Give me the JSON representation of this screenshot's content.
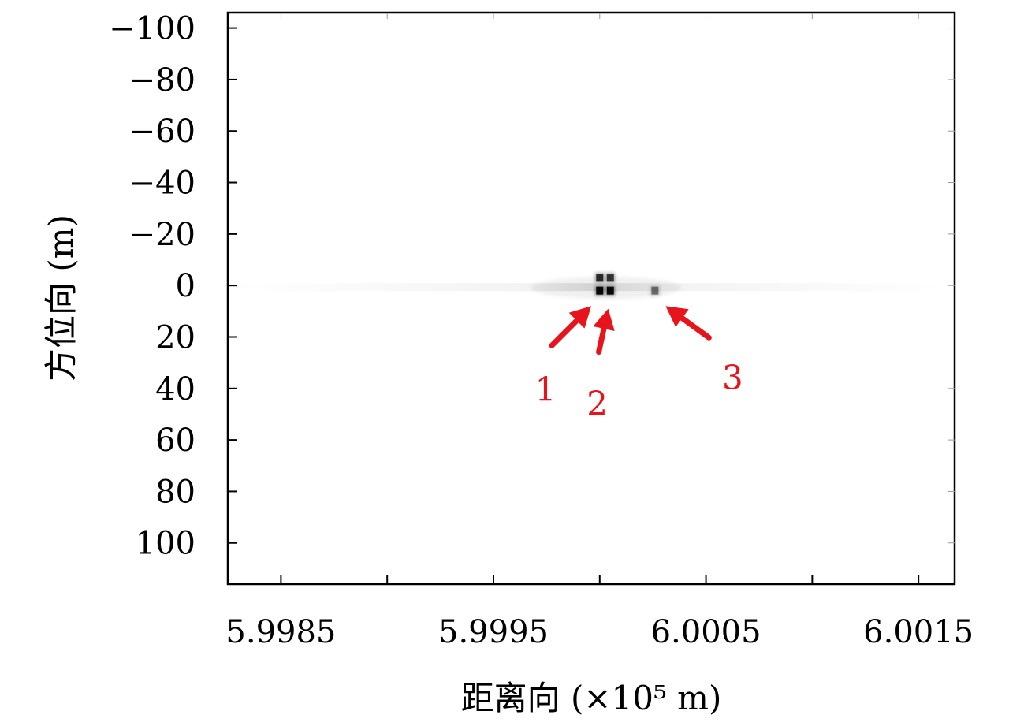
{
  "chart_data": {
    "type": "heatmap",
    "xlabel": "距离向 (×10⁵ m)",
    "ylabel": "方位向 (m)",
    "x_ticks": [
      "5.9985",
      "5.9995",
      "6.0005",
      "6.0015"
    ],
    "x_tick_values": [
      5.9985,
      5.9995,
      6.0005,
      6.0015
    ],
    "xlim": [
      5.99825,
      6.00167
    ],
    "y_ticks": [
      "−100",
      "−80",
      "−60",
      "−40",
      "−20",
      "0",
      "20",
      "40",
      "60",
      "80",
      "100"
    ],
    "y_tick_values": [
      -100,
      -80,
      -60,
      -40,
      -20,
      0,
      20,
      40,
      60,
      80,
      100
    ],
    "ylim": [
      -106,
      116
    ],
    "y_reversed": true,
    "grid": false,
    "colormap": "grayscale (white = low, black = high)",
    "points": [
      {
        "x": 6.0,
        "y": -3,
        "intensity": 0.75
      },
      {
        "x": 6.00005,
        "y": -3,
        "intensity": 0.7
      },
      {
        "x": 6.0,
        "y": 2,
        "intensity": 0.95
      },
      {
        "x": 6.00005,
        "y": 2,
        "intensity": 0.95
      },
      {
        "x": 6.00026,
        "y": 2,
        "intensity": 0.45
      }
    ],
    "annotations": [
      {
        "label": "1",
        "x_tip": 5.99996,
        "y_tip": 8,
        "color": "#e8141c"
      },
      {
        "label": "2",
        "x_tip": 6.00004,
        "y_tip": 9,
        "color": "#e8141c"
      },
      {
        "label": "3",
        "x_tip": 6.00031,
        "y_tip": 8,
        "color": "#e8141c"
      }
    ]
  }
}
